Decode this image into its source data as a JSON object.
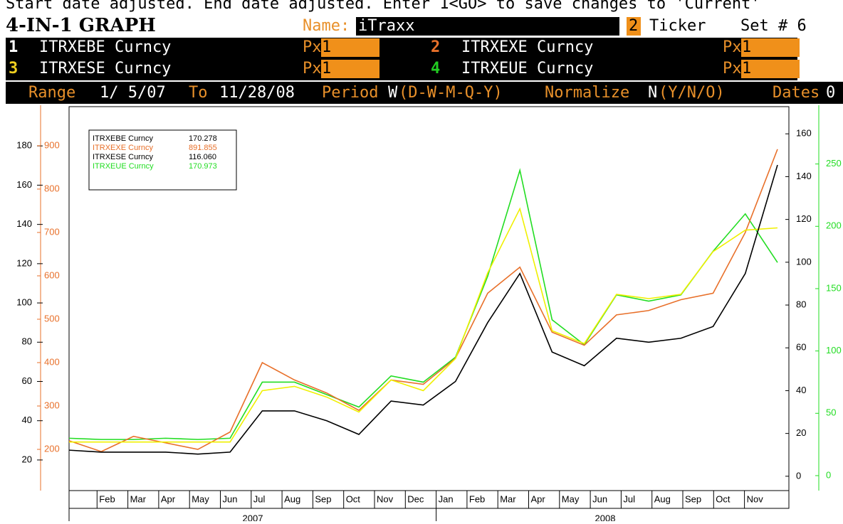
{
  "header": {
    "status": "Start date adjusted. End date adjusted. Enter 1<GO> to save changes to 'Current'",
    "title": "4-IN-1 GRAPH",
    "name_label": "Name:",
    "name": "iTraxx",
    "ticker_num": "2",
    "ticker_label": "Ticker",
    "set": "Set # 6",
    "rows": [
      {
        "num": "1",
        "ticker": "ITRXEBE Curncy",
        "field": "Px",
        "value": "1"
      },
      {
        "num": "2",
        "ticker": "ITRXEXE Curncy",
        "field": "Px",
        "value": "1"
      },
      {
        "num": "3",
        "ticker": "ITRXESE Curncy",
        "field": "Px",
        "value": "1"
      },
      {
        "num": "4",
        "ticker": "ITRXEUE Curncy",
        "field": "Px",
        "value": "1"
      }
    ],
    "range_label": "Range",
    "start": "1/ 5/07",
    "to_label": "To",
    "end": "11/28/08",
    "period_label": "Period",
    "period": "W",
    "period_opts": "(D-W-M-Q-Y)",
    "normalize_label": "Normalize",
    "normalize": "N",
    "normalize_opts": "(Y/N/O)",
    "dates_label": "Dates",
    "dates": "0"
  },
  "chart_data": {
    "type": "line",
    "x": [
      "2007-01",
      "2007-02",
      "2007-03",
      "2007-04",
      "2007-05",
      "2007-06",
      "2007-07",
      "2007-08",
      "2007-09",
      "2007-10",
      "2007-11",
      "2007-12",
      "2008-01",
      "2008-02",
      "2008-03",
      "2008-04",
      "2008-05",
      "2008-06",
      "2008-07",
      "2008-08",
      "2008-09",
      "2008-10",
      "2008-11"
    ],
    "month_labels": [
      "Feb",
      "Mar",
      "Apr",
      "May",
      "Jun",
      "Jul",
      "Aug",
      "Sep",
      "Oct",
      "Nov",
      "Dec",
      "Jan",
      "Feb",
      "Mar",
      "Apr",
      "May",
      "Jun",
      "Jul",
      "Aug",
      "Sep",
      "Oct",
      "Nov"
    ],
    "year_labels": [
      "2007",
      "2008"
    ],
    "series": [
      {
        "name": "ITRXEBE Curncy",
        "last": "170.278",
        "color": "#000000",
        "axis": "y",
        "values": [
          25,
          24,
          24,
          24,
          23,
          24,
          45,
          45,
          40,
          33,
          50,
          48,
          60,
          90,
          115,
          75,
          68,
          82,
          80,
          82,
          88,
          115,
          170.278
        ]
      },
      {
        "name": "ITRXEXE Curncy",
        "last": "891.855",
        "color": "#e8702a",
        "axis": "y2",
        "values": [
          220,
          195,
          230,
          215,
          200,
          240,
          400,
          360,
          330,
          290,
          360,
          350,
          410,
          560,
          620,
          470,
          440,
          510,
          520,
          545,
          560,
          700,
          891.855
        ]
      },
      {
        "name": "ITRXESE Curncy",
        "last": "116.060",
        "color": "#f0f000",
        "axis": "y3",
        "values": [
          16,
          16,
          16,
          16,
          16,
          16,
          40,
          42,
          37,
          30,
          45,
          40,
          55,
          95,
          125,
          68,
          62,
          85,
          83,
          85,
          105,
          115,
          116.06
        ]
      },
      {
        "name": "ITRXEUE Curncy",
        "last": "170.973",
        "color": "#22dd22",
        "axis": "y4",
        "values": [
          30,
          29,
          29,
          30,
          29,
          30,
          75,
          75,
          65,
          55,
          80,
          75,
          95,
          160,
          245,
          125,
          105,
          145,
          140,
          145,
          180,
          210,
          170.973
        ]
      }
    ],
    "ylim": [
      4.4,
      200
    ],
    "yticks": [
      20,
      40,
      60,
      80,
      100,
      120,
      140,
      160,
      180
    ],
    "y2lim": [
      105,
      990
    ],
    "y2ticks": [
      200,
      300,
      400,
      500,
      600,
      700,
      800,
      900
    ],
    "y3lim": [
      -6.7,
      172.7
    ],
    "y3ticks": [
      0,
      20,
      40,
      60,
      80,
      100,
      120,
      140,
      160
    ],
    "y4lim": [
      -12,
      296
    ],
    "y4ticks": [
      0,
      50,
      100,
      150,
      200,
      250
    ]
  }
}
